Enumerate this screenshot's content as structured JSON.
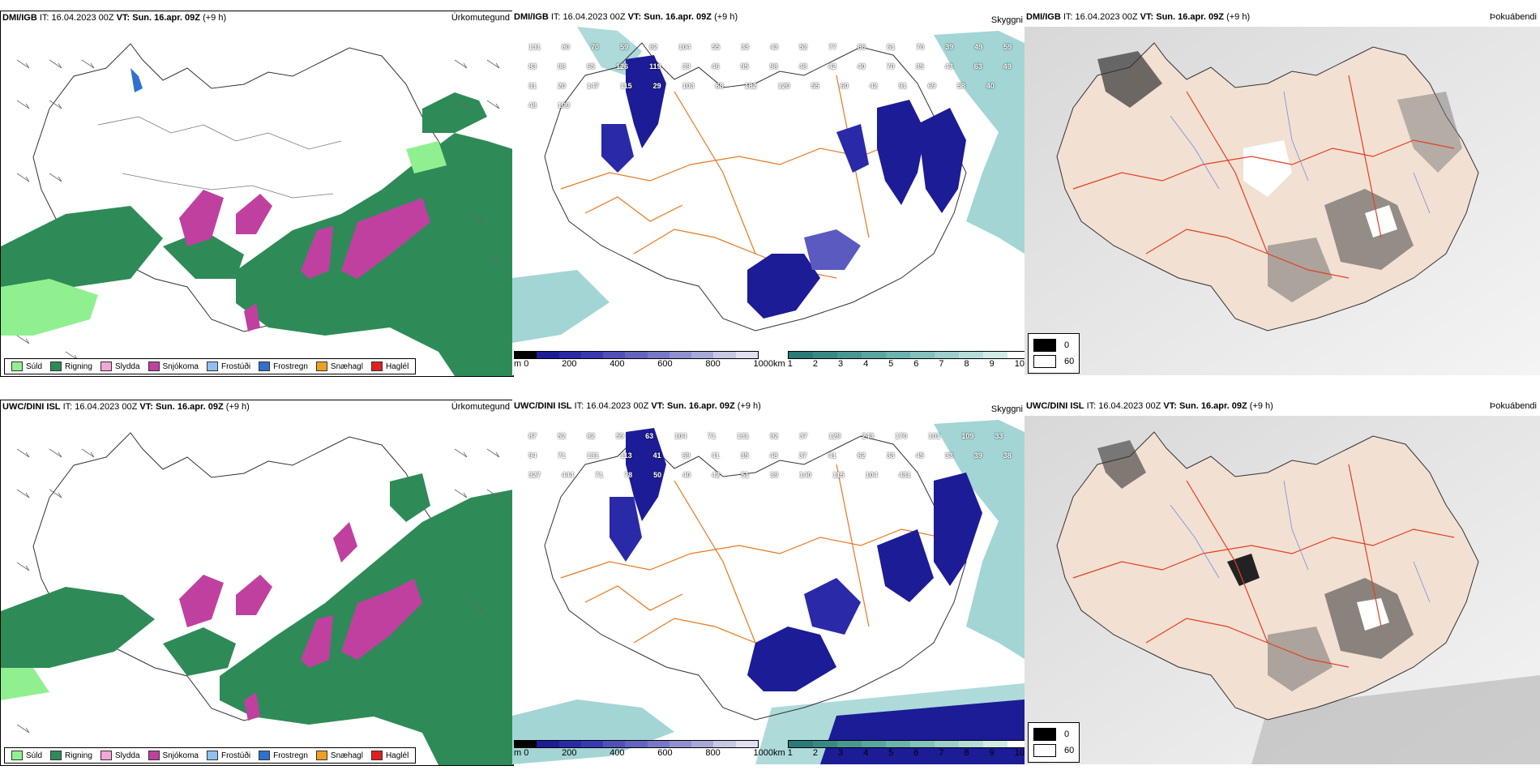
{
  "rows": [
    {
      "model": "DMI/IGB",
      "it_label": "IT:",
      "it_value": "16.04.2023 00Z",
      "vt_label": "VT:",
      "vt_value": "Sun. 16.apr. 09Z",
      "offset": "(+9 h)"
    },
    {
      "model": "UWC/DINI ISL",
      "it_label": "IT:",
      "it_value": "16.04.2023 00Z",
      "vt_label": "VT:",
      "vt_value": "Sun. 16.apr. 09Z",
      "offset": "(+9 h)"
    }
  ],
  "panels": {
    "precip_title": "Úrkomutegund",
    "visibility_title": "Skyggni",
    "fog_title": "Þokuábendi"
  },
  "precip_legend": [
    {
      "label": "Súld",
      "color": "#90f090"
    },
    {
      "label": "Rigning",
      "color": "#2e8b57"
    },
    {
      "label": "Slydda",
      "color": "#f4a6d7"
    },
    {
      "label": "Snjókoma",
      "color": "#c040a0"
    },
    {
      "label": "Frostúði",
      "color": "#90c0f0"
    },
    {
      "label": "Frostregn",
      "color": "#3070d0"
    },
    {
      "label": "Snæhagl",
      "color": "#f0a020"
    },
    {
      "label": "Haglél",
      "color": "#e02020"
    }
  ],
  "ceiling_bar": {
    "unit": "m",
    "ticks": [
      "0",
      "200",
      "400",
      "600",
      "800",
      "1000"
    ]
  },
  "visibility_bar": {
    "unit": "km",
    "ticks": [
      "1",
      "2",
      "3",
      "4",
      "5",
      "6",
      "7",
      "8",
      "9",
      "10"
    ]
  },
  "fog_key": [
    {
      "label": "0",
      "color": "#000000"
    },
    {
      "label": "60",
      "color": "#ffffff"
    }
  ],
  "ceiling_labels_top": [
    "131",
    "80",
    "70",
    "59",
    "62",
    "104",
    "55",
    "33",
    "43",
    "52",
    "77",
    "86",
    "61",
    "70",
    "39",
    "49",
    "59",
    "83",
    "98",
    "65",
    "126",
    "119",
    "39",
    "46",
    "95",
    "98",
    "48",
    "42",
    "40",
    "70",
    "35",
    "43",
    "63",
    "49",
    "31",
    "20",
    "147",
    "115",
    "29",
    "103",
    "68",
    "182",
    "120",
    "55",
    "60",
    "42",
    "91",
    "69",
    "58",
    "40",
    "48",
    "109"
  ],
  "ceiling_labels_bottom": [
    "87",
    "52",
    "82",
    "59",
    "63",
    "104",
    "71",
    "131",
    "92",
    "37",
    "129",
    "243",
    "170",
    "101",
    "109",
    "33",
    "94",
    "71",
    "131",
    "113",
    "41",
    "69",
    "41",
    "35",
    "48",
    "37",
    "41",
    "62",
    "33",
    "45",
    "33",
    "39",
    "38",
    "327",
    "444",
    "71",
    "78",
    "50",
    "40",
    "42",
    "51",
    "39",
    "140",
    "115",
    "104",
    "431"
  ]
}
